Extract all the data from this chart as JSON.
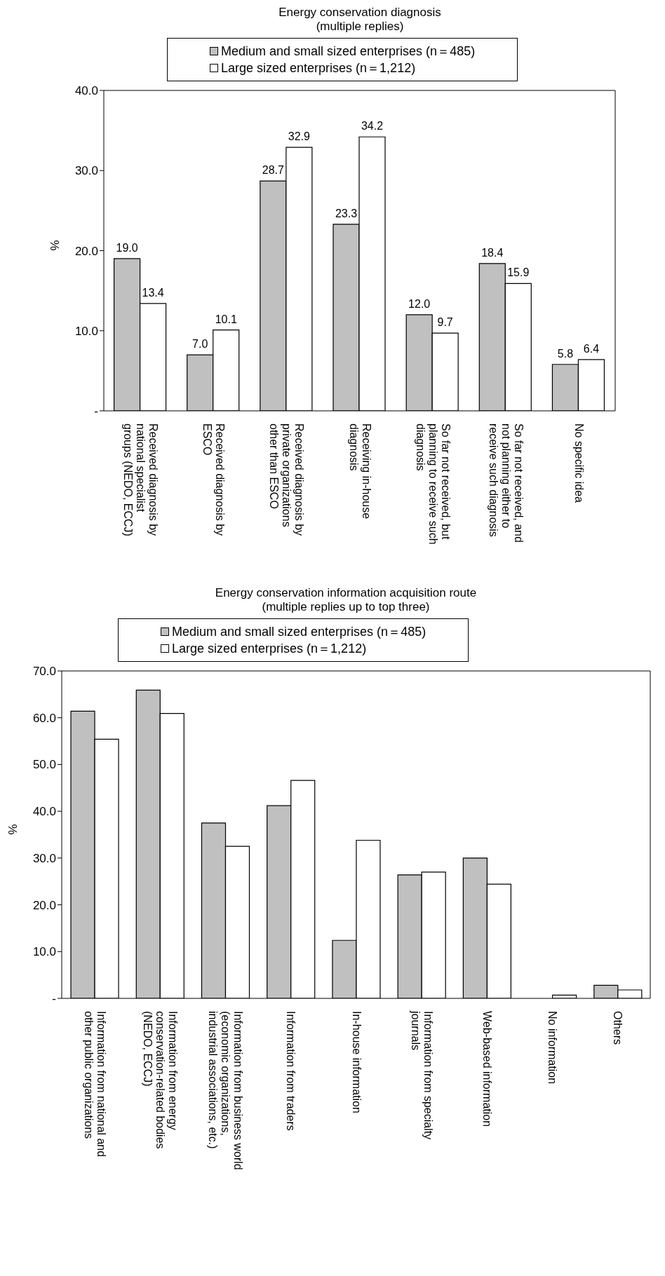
{
  "chart_data": [
    {
      "type": "bar",
      "title": "Energy conservation diagnosis",
      "subtitle": "(multiple replies)",
      "ylabel": "%",
      "categories": [
        "Received diagnosis by national specialist groups (NEDO, ECCJ)",
        "Received diagnosis by ESCO",
        "Received diagnosis by private organizations other than ESCO",
        "Receiving in-house diagnosis",
        "So far not received, but planning to receive such diagnosis",
        "So far not received, and not planning either to receive such diagnosis",
        "No specific idea"
      ],
      "series": [
        {
          "name": "Medium and small sized enterprises (n＝485)",
          "color": "#c0c0c0",
          "values": [
            19.0,
            7.0,
            28.7,
            23.3,
            12.0,
            18.4,
            5.8
          ],
          "value_labels": [
            "19.0",
            "7.0",
            "28.7",
            "23.3",
            "12.0",
            "18.4",
            "5.8"
          ]
        },
        {
          "name": "Large sized enterprises (n＝1,212)",
          "color": "#ffffff",
          "values": [
            13.4,
            10.1,
            32.9,
            34.2,
            9.7,
            15.9,
            6.4
          ],
          "value_labels": [
            "13.4",
            "10.1",
            "32.9",
            "34.2",
            "9.7",
            "15.9",
            "6.4"
          ]
        }
      ],
      "ylim": [
        0,
        40
      ],
      "yticks": [
        {
          "value": 0,
          "label": "-"
        },
        {
          "value": 10,
          "label": "10.0"
        },
        {
          "value": 20,
          "label": "20.0"
        },
        {
          "value": 30,
          "label": "30.0"
        },
        {
          "value": 40,
          "label": "40.0"
        }
      ],
      "grid": false,
      "legend": "top"
    },
    {
      "type": "bar",
      "title": "Energy conservation information acquisition route",
      "subtitle": "(multiple replies up to top three)",
      "ylabel": "%",
      "categories": [
        "Information from national and other public organizations",
        "Information from energy conservation-related bodies (NEDO, ECCJ)",
        "Information from business world (economic organizations, industrial associations, etc.)",
        "Information from traders",
        "In-house information",
        "Information from specialty journals",
        "Web-based information",
        "No information",
        "Others"
      ],
      "series": [
        {
          "name": "Medium and small sized enterprises (n＝485)",
          "color": "#c0c0c0",
          "values": [
            61.4,
            65.9,
            37.5,
            41.2,
            12.4,
            26.4,
            30.0,
            0,
            2.8
          ]
        },
        {
          "name": "Large sized enterprises (n＝1,212)",
          "color": "#ffffff",
          "values": [
            55.4,
            60.9,
            32.5,
            46.6,
            33.8,
            27.0,
            24.4,
            0.7,
            1.8
          ]
        }
      ],
      "ylim": [
        0,
        70
      ],
      "yticks": [
        {
          "value": 0,
          "label": "-"
        },
        {
          "value": 10,
          "label": "10.0"
        },
        {
          "value": 20,
          "label": "20.0"
        },
        {
          "value": 30,
          "label": "30.0"
        },
        {
          "value": 40,
          "label": "40.0"
        },
        {
          "value": 50,
          "label": "50.0"
        },
        {
          "value": 60,
          "label": "60.0"
        },
        {
          "value": 70,
          "label": "70.0"
        }
      ],
      "grid": false,
      "legend": "top"
    }
  ]
}
